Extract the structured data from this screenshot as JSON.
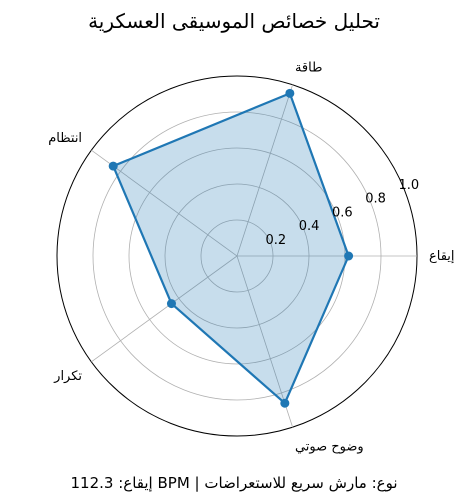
{
  "chart_data": {
    "type": "radar",
    "title": "تحليل خصائص الموسيقى العسكرية",
    "categories": [
      "إيقاع",
      "طاقة",
      "انتظام",
      "تكرار",
      "وضوح صوتي"
    ],
    "series": [
      {
        "values": [
          0.62,
          0.95,
          0.85,
          0.45,
          0.86
        ],
        "line_color": "#1f77b4",
        "fill_color": "#1f77b4"
      }
    ],
    "rlim": [
      0,
      1.0
    ],
    "radial_ticks": [
      0.2,
      0.4,
      0.6,
      0.8,
      1.0
    ],
    "radial_tick_labels": [
      "0.2",
      "0.4",
      "0.6",
      "0.8",
      "1.0"
    ],
    "grid": true
  },
  "footer_text": "إيقاع: 112.3 BPM | نوع: مارش سريع للاستعراضات"
}
